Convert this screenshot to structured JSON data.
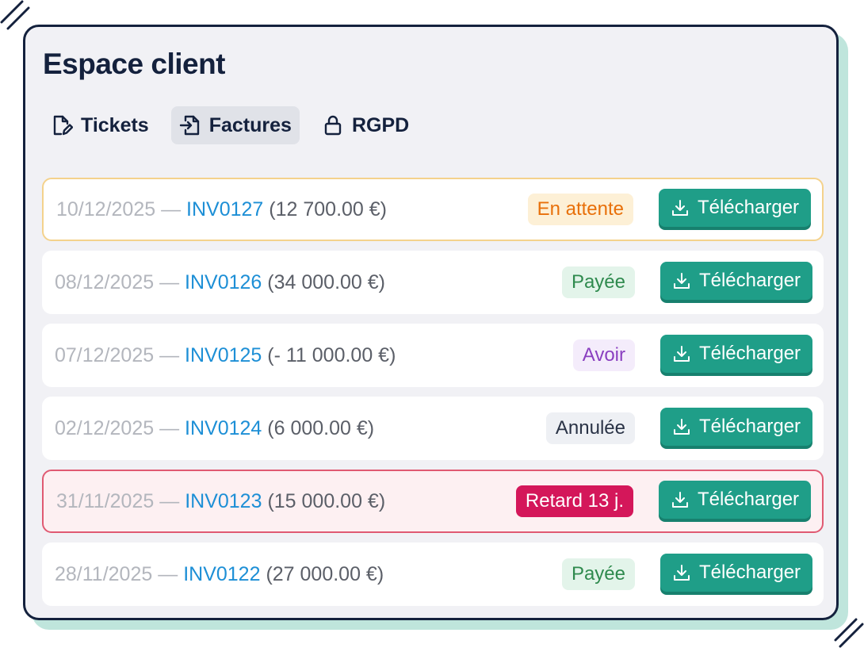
{
  "header": {
    "title": "Espace client"
  },
  "tabs": [
    {
      "label": "Tickets",
      "icon": "edit-document-icon",
      "active": false
    },
    {
      "label": "Factures",
      "icon": "file-import-icon",
      "active": true
    },
    {
      "label": "RGPD",
      "icon": "lock-icon",
      "active": false
    }
  ],
  "invoices": [
    {
      "date": "10/12/2025",
      "separator": " — ",
      "ref": "INV0127",
      "amount": "(12 700.00 €)",
      "status": "En attente",
      "status_kind": "pending",
      "download": "Télécharger"
    },
    {
      "date": "08/12/2025",
      "separator": " — ",
      "ref": "INV0126",
      "amount": "(34 000.00 €)",
      "status": "Payée",
      "status_kind": "paid",
      "download": "Télécharger"
    },
    {
      "date": "07/12/2025",
      "separator": " — ",
      "ref": "INV0125",
      "amount": "(- 11 000.00 €)",
      "status": "Avoir",
      "status_kind": "credit",
      "download": "Télécharger"
    },
    {
      "date": "02/12/2025",
      "separator": " — ",
      "ref": "INV0124",
      "amount": "(6 000.00 €)",
      "status": "Annulée",
      "status_kind": "cancelled",
      "download": "Télécharger"
    },
    {
      "date": "31/11/2025",
      "separator": " — ",
      "ref": "INV0123",
      "amount": "(15 000.00 €)",
      "status": "Retard 13 j.",
      "status_kind": "late",
      "download": "Télécharger"
    },
    {
      "date": "28/11/2025",
      "separator": " — ",
      "ref": "INV0122",
      "amount": "(27 000.00 €)",
      "status": "Payée",
      "status_kind": "paid",
      "download": "Télécharger"
    }
  ],
  "colors": {
    "accent": "#1f9e88",
    "link": "#1d8fd6",
    "navy": "#14213d",
    "pending_bg": "#fdf0d6",
    "pending_fg": "#e8700a",
    "paid_bg": "#e3f4ea",
    "paid_fg": "#2f8a4e",
    "credit_bg": "#f4ecfb",
    "credit_fg": "#8a3fc0",
    "cancelled_bg": "#eef0f4",
    "cancelled_fg": "#2a3346",
    "late_bg": "#d4175a",
    "late_fg": "#ffffff"
  }
}
